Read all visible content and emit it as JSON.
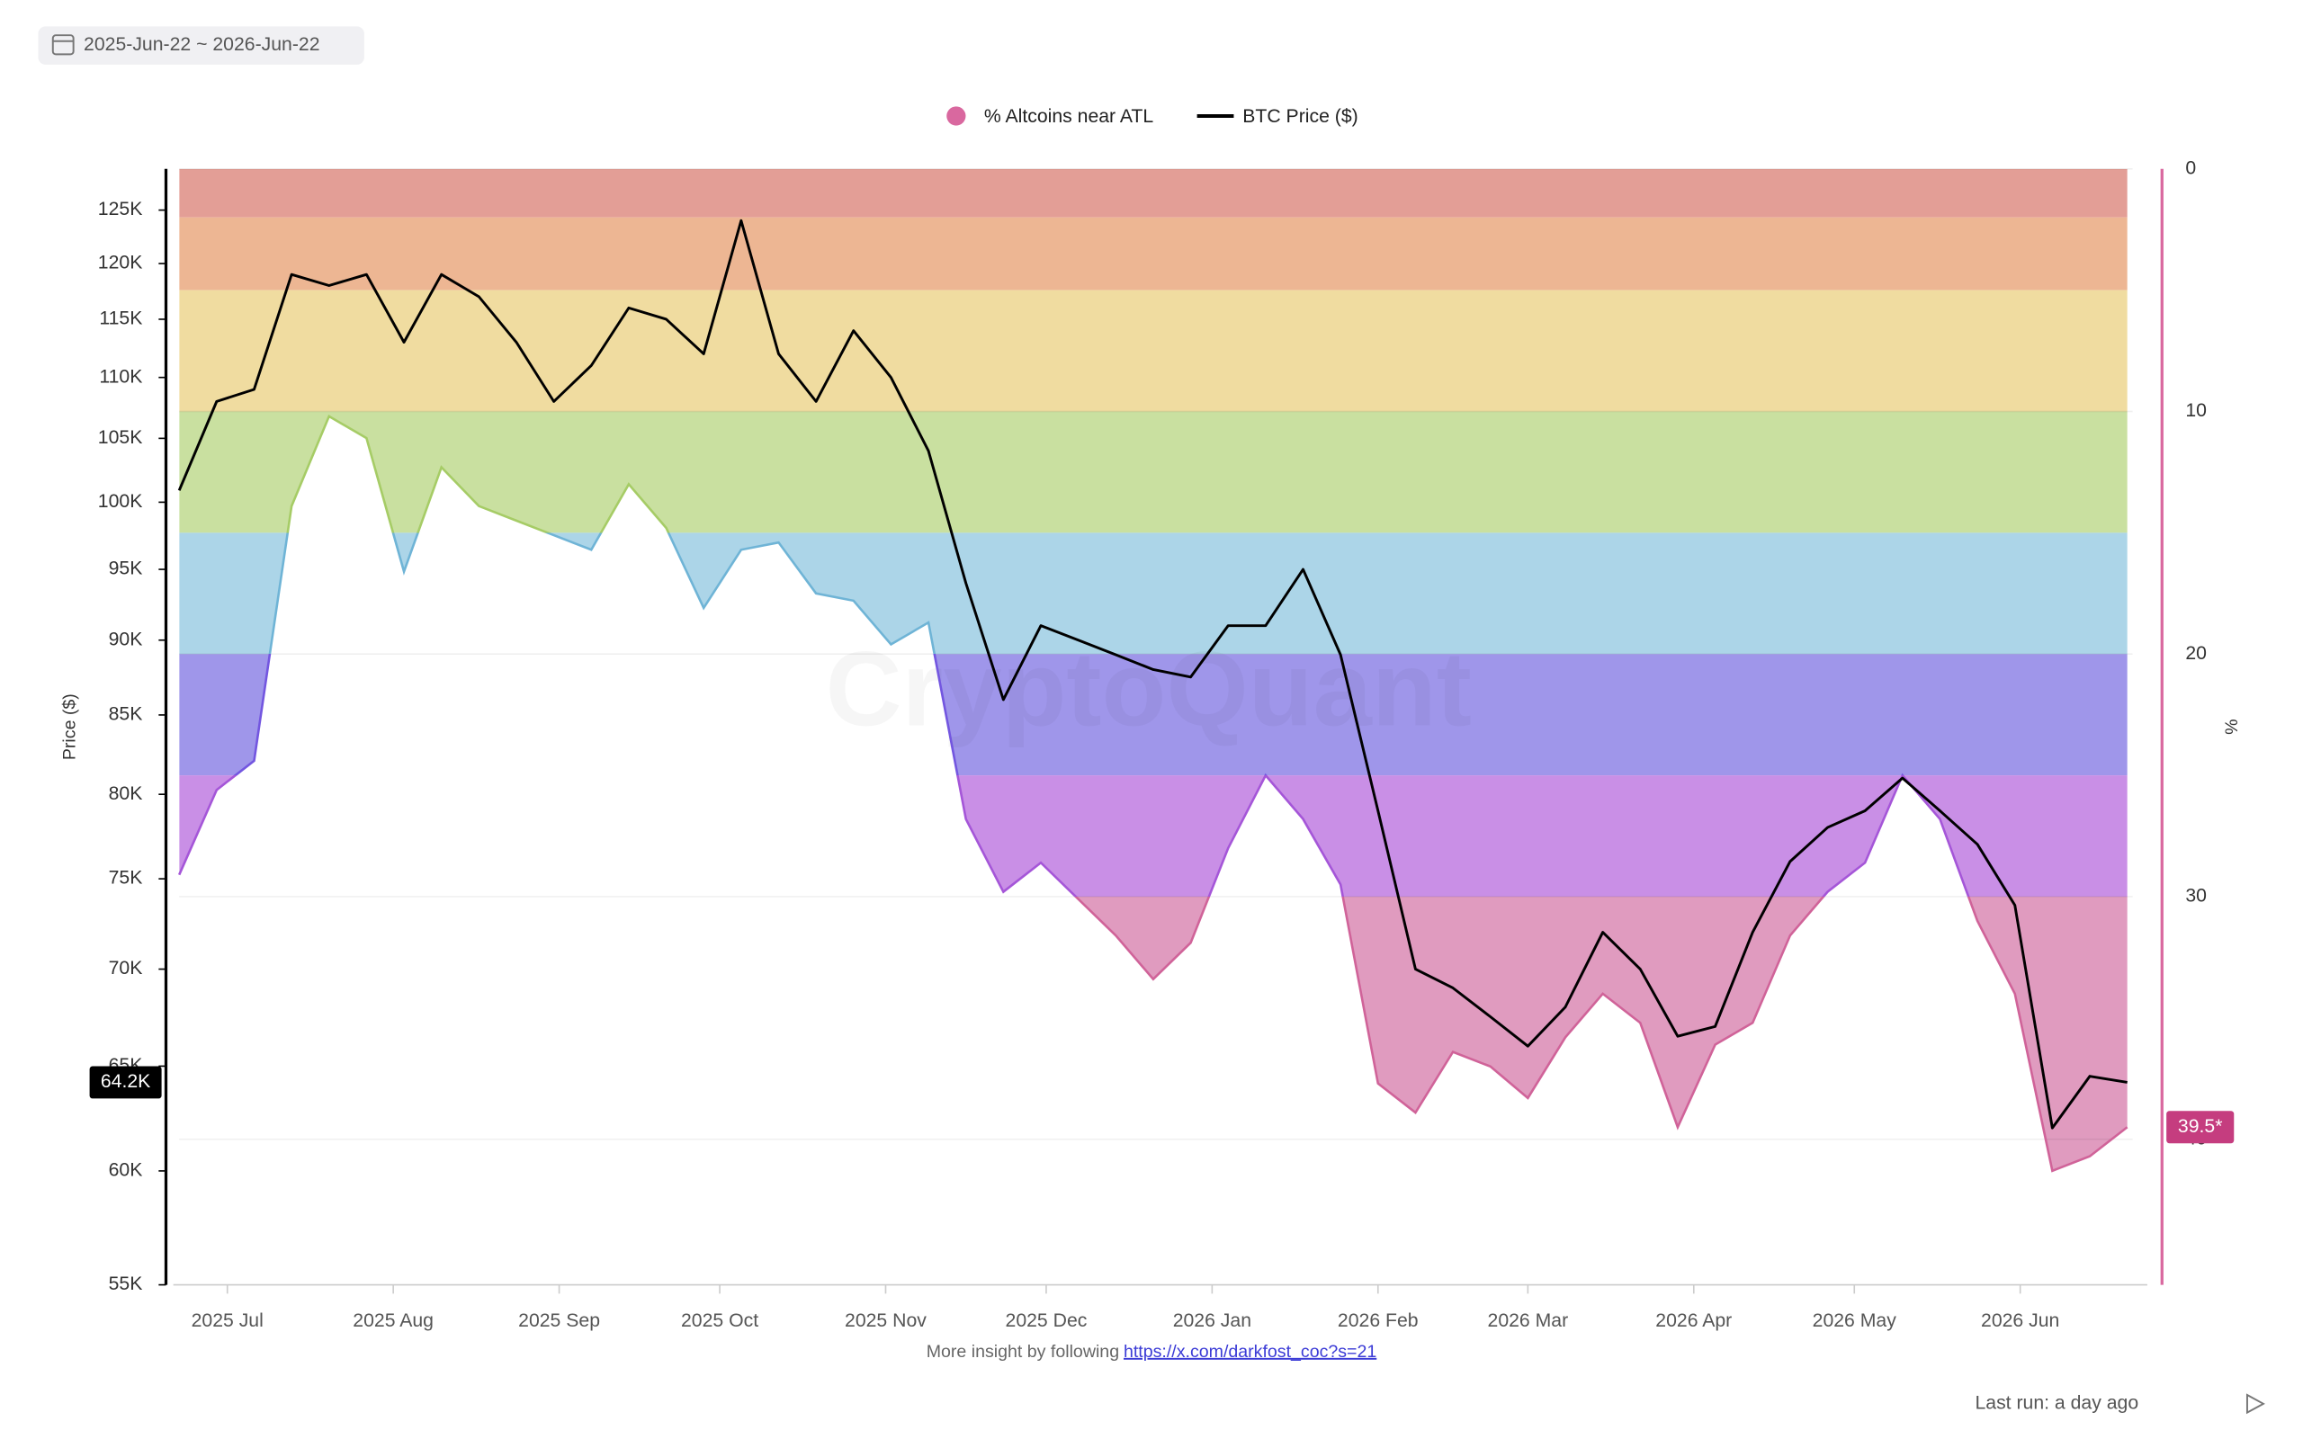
{
  "header": {
    "date_range": "2025-Jun-22 ~ 2026-Jun-22"
  },
  "chart_data": {
    "type": "line",
    "watermark": "CryptoQuant",
    "y_title": "Price ($)",
    "y2_title": "%",
    "x": [
      "2025-06-22",
      "2025-06-29",
      "2025-07-06",
      "2025-07-13",
      "2025-07-20",
      "2025-07-27",
      "2025-08-03",
      "2025-08-10",
      "2025-08-17",
      "2025-08-24",
      "2025-08-31",
      "2025-09-07",
      "2025-09-14",
      "2025-09-21",
      "2025-09-28",
      "2025-10-05",
      "2025-10-12",
      "2025-10-19",
      "2025-10-26",
      "2025-11-02",
      "2025-11-09",
      "2025-11-16",
      "2025-11-23",
      "2025-11-30",
      "2025-12-07",
      "2025-12-14",
      "2025-12-21",
      "2025-12-28",
      "2026-01-04",
      "2026-01-11",
      "2026-01-18",
      "2026-01-25",
      "2026-02-01",
      "2026-02-08",
      "2026-02-15",
      "2026-02-22",
      "2026-03-01",
      "2026-03-08",
      "2026-03-15",
      "2026-03-22",
      "2026-03-29",
      "2026-04-05",
      "2026-04-12",
      "2026-04-19",
      "2026-04-26",
      "2026-05-03",
      "2026-05-10",
      "2026-05-17",
      "2026-05-24",
      "2026-05-31",
      "2026-06-07",
      "2026-06-14",
      "2026-06-21"
    ],
    "xlim": [
      "2025-06-22",
      "2026-06-22"
    ],
    "xticks": [
      {
        "value": "2025-07-01",
        "label": "2025 Jul"
      },
      {
        "value": "2025-08-01",
        "label": "2025 Aug"
      },
      {
        "value": "2025-09-01",
        "label": "2025 Sep"
      },
      {
        "value": "2025-10-01",
        "label": "2025 Oct"
      },
      {
        "value": "2025-11-01",
        "label": "2025 Nov"
      },
      {
        "value": "2025-12-01",
        "label": "2025 Dec"
      },
      {
        "value": "2026-01-01",
        "label": "2026 Jan"
      },
      {
        "value": "2026-02-01",
        "label": "2026 Feb"
      },
      {
        "value": "2026-03-01",
        "label": "2026 Mar"
      },
      {
        "value": "2026-04-01",
        "label": "2026 Apr"
      },
      {
        "value": "2026-05-01",
        "label": "2026 May"
      },
      {
        "value": "2026-06-01",
        "label": "2026 Jun"
      }
    ],
    "ylog": true,
    "ylim": [
      55000,
      129000
    ],
    "yticks": [
      {
        "value": 55000,
        "label": "55K"
      },
      {
        "value": 60000,
        "label": "60K"
      },
      {
        "value": 65000,
        "label": "65K"
      },
      {
        "value": 70000,
        "label": "70K"
      },
      {
        "value": 75000,
        "label": "75K"
      },
      {
        "value": 80000,
        "label": "80K"
      },
      {
        "value": 85000,
        "label": "85K"
      },
      {
        "value": 90000,
        "label": "90K"
      },
      {
        "value": 95000,
        "label": "95K"
      },
      {
        "value": 100000,
        "label": "100K"
      },
      {
        "value": 105000,
        "label": "105K"
      },
      {
        "value": 110000,
        "label": "110K"
      },
      {
        "value": 115000,
        "label": "115K"
      },
      {
        "value": 120000,
        "label": "120K"
      },
      {
        "value": 125000,
        "label": "125K"
      }
    ],
    "y2lim": [
      0,
      46
    ],
    "y2_inverted": true,
    "y2ticks": [
      0,
      10,
      20,
      30,
      40
    ],
    "grid": true,
    "bands": [
      {
        "from": 0,
        "to": 2,
        "color": "#e39e96",
        "line_color": "#d9776d"
      },
      {
        "from": 2,
        "to": 5,
        "color": "#edb693",
        "line_color": "#e0925f"
      },
      {
        "from": 5,
        "to": 10,
        "color": "#f0dca0",
        "line_color": "#dcc06a"
      },
      {
        "from": 10,
        "to": 15,
        "color": "#c9e0a0",
        "line_color": "#a6cc66"
      },
      {
        "from": 15,
        "to": 20,
        "color": "#acd5e8",
        "line_color": "#6fb4d6"
      },
      {
        "from": 20,
        "to": 25,
        "color": "#9f96ea",
        "line_color": "#7356e0"
      },
      {
        "from": 25,
        "to": 30,
        "color": "#c98fe6",
        "line_color": "#a556d8"
      },
      {
        "from": 30,
        "to": 46,
        "color": "#e09bbf",
        "line_color": "#d06399"
      }
    ],
    "series": [
      {
        "name": "% Altcoins near ATL",
        "color": "#d9689f",
        "axis": "y2",
        "last_label": "39.5*",
        "values": [
          29.1,
          25.6,
          24.4,
          13.9,
          10.2,
          11.1,
          16.6,
          12.3,
          13.9,
          14.5,
          15.1,
          15.7,
          13.0,
          14.8,
          18.1,
          15.7,
          15.4,
          17.5,
          17.8,
          19.6,
          18.7,
          26.8,
          29.8,
          28.6,
          30.1,
          31.6,
          33.4,
          31.9,
          28.0,
          25.0,
          26.8,
          29.5,
          37.7,
          38.9,
          36.4,
          37.0,
          38.3,
          35.8,
          34.0,
          35.2,
          39.5,
          36.1,
          35.2,
          31.6,
          29.8,
          28.6,
          25.0,
          26.8,
          31.0,
          34.0,
          41.3,
          40.7,
          39.5
        ]
      },
      {
        "name": "BTC Price ($)",
        "color": "#000000",
        "axis": "y",
        "last_label": "64.2K",
        "values": [
          100900,
          108000,
          109000,
          119000,
          118000,
          119000,
          113000,
          119000,
          117000,
          113000,
          108000,
          111000,
          116000,
          115000,
          112000,
          124000,
          112000,
          108000,
          114000,
          110000,
          104000,
          94000,
          86000,
          91000,
          90000,
          89000,
          88000,
          87500,
          91000,
          91000,
          95000,
          89000,
          79000,
          70000,
          69000,
          67500,
          66000,
          68000,
          72000,
          70000,
          66500,
          67000,
          72000,
          76000,
          78000,
          79000,
          81000,
          79000,
          77000,
          73500,
          62000,
          64500,
          64200
        ]
      }
    ]
  },
  "footer": {
    "note": "More insight by following",
    "link": "https://x.com/darkfost_coc?s=21",
    "last_run": "Last run: a day ago"
  }
}
